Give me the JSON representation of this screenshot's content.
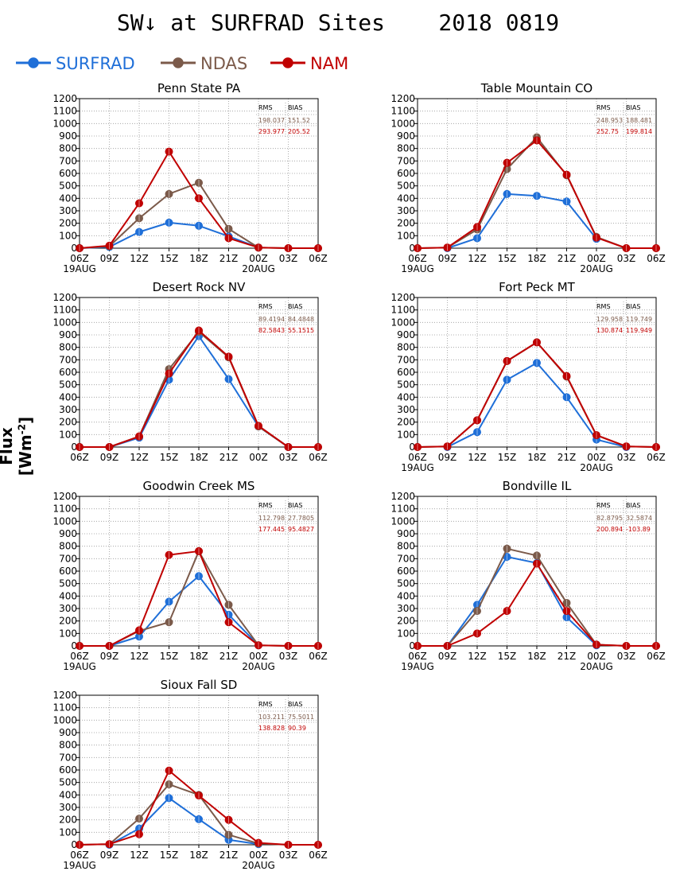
{
  "title": "SW↓ at SURFRAD Sites    2018 0819",
  "ylabel": "Flux [Wm",
  "ylabel_sup": "-2",
  "ylabel_end": "]",
  "legend": [
    {
      "label": "SURFRAD",
      "color": "#1f6fd8"
    },
    {
      "label": "NDAS",
      "color": "#7b5a4a"
    },
    {
      "label": "NAM",
      "color": "#c00000"
    }
  ],
  "stats_headers": [
    "RMS",
    "BIAS"
  ],
  "colors": {
    "surfrad": "#1f6fd8",
    "ndas": "#7b5a4a",
    "nam": "#c00000"
  },
  "chart_data": [
    {
      "type": "line",
      "title": "Penn State PA",
      "x": [
        "06Z",
        "09Z",
        "12Z",
        "15Z",
        "18Z",
        "21Z",
        "00Z",
        "03Z",
        "06Z"
      ],
      "date_labels": [
        "19AUG",
        "",
        "",
        "",
        "",
        "",
        "20AUG",
        "",
        ""
      ],
      "ylim": [
        0,
        1200
      ],
      "yticks": [
        0,
        100,
        200,
        300,
        400,
        500,
        600,
        700,
        800,
        900,
        1000,
        1100,
        1200
      ],
      "grid": true,
      "series": [
        {
          "name": "SURFRAD",
          "values": [
            0,
            10,
            130,
            205,
            180,
            95,
            5,
            null,
            null
          ]
        },
        {
          "name": "NDAS",
          "values": [
            0,
            15,
            240,
            435,
            525,
            155,
            5,
            0,
            0
          ]
        },
        {
          "name": "NAM",
          "values": [
            0,
            20,
            360,
            775,
            400,
            80,
            5,
            0,
            0
          ]
        }
      ],
      "stats": {
        "ndas": [
          "198.037",
          "151.52"
        ],
        "nam": [
          "293.977",
          "205.52"
        ]
      }
    },
    {
      "type": "line",
      "title": "Table Mountain CO",
      "x": [
        "06Z",
        "09Z",
        "12Z",
        "15Z",
        "18Z",
        "21Z",
        "00Z",
        "03Z",
        "06Z"
      ],
      "date_labels": [
        "19AUG",
        "",
        "",
        "",
        "",
        "",
        "20AUG",
        "",
        ""
      ],
      "ylim": [
        0,
        1200
      ],
      "yticks": [
        0,
        100,
        200,
        300,
        400,
        500,
        600,
        700,
        800,
        900,
        1000,
        1100,
        1200
      ],
      "grid": true,
      "series": [
        {
          "name": "SURFRAD",
          "values": [
            null,
            0,
            80,
            435,
            420,
            375,
            75,
            null,
            null
          ]
        },
        {
          "name": "NDAS",
          "values": [
            0,
            5,
            150,
            635,
            890,
            585,
            90,
            0,
            0
          ]
        },
        {
          "name": "NAM",
          "values": [
            0,
            5,
            170,
            685,
            865,
            590,
            85,
            0,
            0
          ]
        }
      ],
      "stats": {
        "ndas": [
          "248.953",
          "188.481"
        ],
        "nam": [
          "252.75",
          "199.814"
        ]
      }
    },
    {
      "type": "line",
      "title": "Desert Rock NV",
      "x": [
        "06Z",
        "09Z",
        "12Z",
        "15Z",
        "18Z",
        "21Z",
        "00Z",
        "03Z",
        "06Z"
      ],
      "date_labels": [
        "",
        "",
        "",
        "",
        "",
        "",
        "",
        "",
        ""
      ],
      "ylim": [
        0,
        1200
      ],
      "yticks": [
        0,
        100,
        200,
        300,
        400,
        500,
        600,
        700,
        800,
        900,
        1000,
        1100,
        1200
      ],
      "grid": true,
      "series": [
        {
          "name": "SURFRAD",
          "values": [
            0,
            0,
            75,
            540,
            890,
            545,
            165,
            0,
            null
          ]
        },
        {
          "name": "NDAS",
          "values": [
            0,
            0,
            85,
            625,
            925,
            720,
            165,
            0,
            0
          ]
        },
        {
          "name": "NAM",
          "values": [
            0,
            0,
            85,
            590,
            935,
            725,
            170,
            0,
            0
          ]
        }
      ],
      "stats": {
        "ndas": [
          "89.4194",
          "84.4848"
        ],
        "nam": [
          "82.5843",
          "55.1515"
        ]
      }
    },
    {
      "type": "line",
      "title": "Fort Peck MT",
      "x": [
        "06Z",
        "09Z",
        "12Z",
        "15Z",
        "18Z",
        "21Z",
        "00Z",
        "03Z",
        "06Z"
      ],
      "date_labels": [
        "19AUG",
        "",
        "",
        "",
        "",
        "",
        "20AUG",
        "",
        ""
      ],
      "ylim": [
        0,
        1200
      ],
      "yticks": [
        0,
        100,
        200,
        300,
        400,
        500,
        600,
        700,
        800,
        900,
        1000,
        1100,
        1200
      ],
      "grid": true,
      "series": [
        {
          "name": "SURFRAD",
          "values": [
            null,
            0,
            120,
            540,
            675,
            400,
            60,
            0,
            null
          ]
        },
        {
          "name": "NDAS",
          "values": [
            0,
            5,
            215,
            690,
            840,
            565,
            95,
            5,
            0
          ]
        },
        {
          "name": "NAM",
          "values": [
            0,
            5,
            215,
            690,
            840,
            570,
            95,
            5,
            0
          ]
        }
      ],
      "stats": {
        "ndas": [
          "129.958",
          "119.749"
        ],
        "nam": [
          "130.874",
          "119.949"
        ]
      }
    },
    {
      "type": "line",
      "title": "Goodwin Creek MS",
      "x": [
        "06Z",
        "09Z",
        "12Z",
        "15Z",
        "18Z",
        "21Z",
        "00Z",
        "03Z",
        "06Z"
      ],
      "date_labels": [
        "19AUG",
        "",
        "",
        "",
        "",
        "",
        "20AUG",
        "",
        ""
      ],
      "ylim": [
        0,
        1200
      ],
      "yticks": [
        0,
        100,
        200,
        300,
        400,
        500,
        600,
        700,
        800,
        900,
        1000,
        1100,
        1200
      ],
      "grid": true,
      "series": [
        {
          "name": "SURFRAD",
          "values": [
            null,
            0,
            75,
            355,
            560,
            250,
            5,
            null,
            null
          ]
        },
        {
          "name": "NDAS",
          "values": [
            0,
            0,
            120,
            190,
            760,
            330,
            5,
            0,
            0
          ]
        },
        {
          "name": "NAM",
          "values": [
            0,
            0,
            125,
            730,
            760,
            190,
            5,
            0,
            0
          ]
        }
      ],
      "stats": {
        "ndas": [
          "112.798",
          "27.7805"
        ],
        "nam": [
          "177.445",
          "95.4827"
        ]
      }
    },
    {
      "type": "line",
      "title": "Bondville IL",
      "x": [
        "06Z",
        "09Z",
        "12Z",
        "15Z",
        "18Z",
        "21Z",
        "00Z",
        "03Z",
        "06Z"
      ],
      "date_labels": [
        "19AUG",
        "",
        "",
        "",
        "",
        "",
        "20AUG",
        "",
        ""
      ],
      "ylim": [
        0,
        1200
      ],
      "yticks": [
        0,
        100,
        200,
        300,
        400,
        500,
        600,
        700,
        800,
        900,
        1000,
        1100,
        1200
      ],
      "grid": true,
      "series": [
        {
          "name": "SURFRAD",
          "values": [
            null,
            0,
            330,
            715,
            665,
            230,
            5,
            null,
            null
          ]
        },
        {
          "name": "NDAS",
          "values": [
            0,
            0,
            280,
            780,
            725,
            345,
            10,
            0,
            0
          ]
        },
        {
          "name": "NAM",
          "values": [
            0,
            0,
            100,
            280,
            660,
            280,
            10,
            0,
            0
          ]
        }
      ],
      "stats": {
        "ndas": [
          "82.8795",
          "32.5874"
        ],
        "nam": [
          "200.894",
          "-103.89"
        ]
      }
    },
    {
      "type": "line",
      "title": "Sioux Fall SD",
      "x": [
        "06Z",
        "09Z",
        "12Z",
        "15Z",
        "18Z",
        "21Z",
        "00Z",
        "03Z",
        "06Z"
      ],
      "date_labels": [
        "19AUG",
        "",
        "",
        "",
        "",
        "",
        "20AUG",
        "",
        ""
      ],
      "ylim": [
        0,
        1200
      ],
      "yticks": [
        0,
        100,
        200,
        300,
        400,
        500,
        600,
        700,
        800,
        900,
        1000,
        1100,
        1200
      ],
      "grid": true,
      "series": [
        {
          "name": "SURFRAD",
          "values": [
            null,
            0,
            130,
            375,
            205,
            40,
            5,
            null,
            null
          ]
        },
        {
          "name": "NDAS",
          "values": [
            0,
            5,
            210,
            485,
            400,
            80,
            10,
            0,
            0
          ]
        },
        {
          "name": "NAM",
          "values": [
            0,
            5,
            85,
            595,
            395,
            200,
            15,
            0,
            0
          ]
        }
      ],
      "stats": {
        "ndas": [
          "103.211",
          "75.5011"
        ],
        "nam": [
          "138.828",
          "90.39"
        ]
      }
    }
  ]
}
